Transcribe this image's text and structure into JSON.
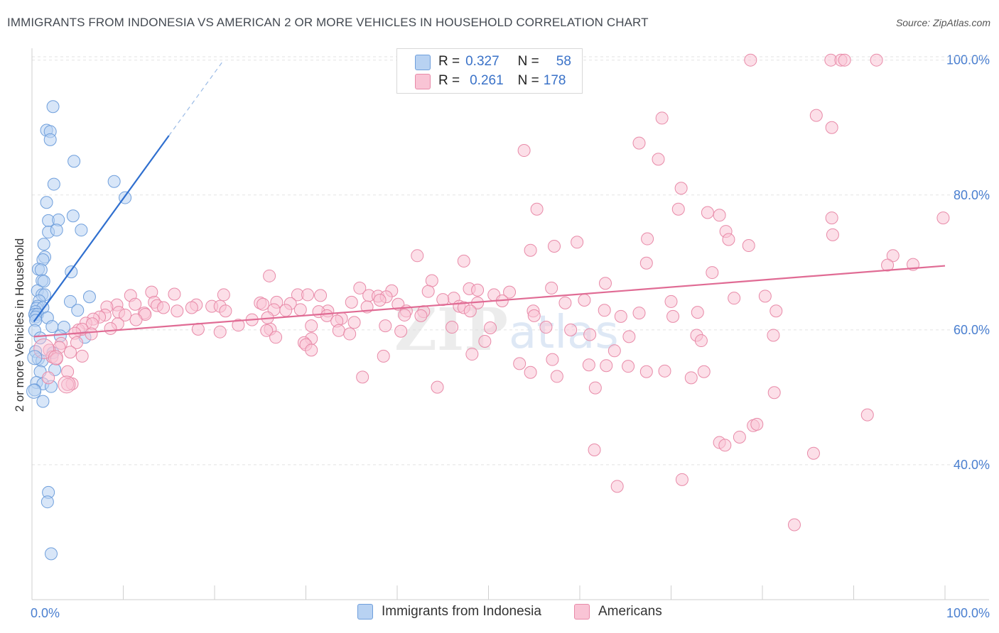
{
  "title": "IMMIGRANTS FROM INDONESIA VS AMERICAN 2 OR MORE VEHICLES IN HOUSEHOLD CORRELATION CHART",
  "source": "Source: ZipAtlas.com",
  "legend": {
    "rows": [
      {
        "r_label": "R =",
        "r_value": "0.327",
        "n_label": "N =",
        "n_value": "58",
        "color": "#b8d2f2",
        "border": "#6f9fdc"
      },
      {
        "r_label": "R =",
        "r_value": "0.261",
        "n_label": "N =",
        "n_value": "178",
        "color": "#f9c4d5",
        "border": "#e88aa8"
      }
    ]
  },
  "bottom_legend": [
    {
      "label": "Immigrants from Indonesia",
      "color": "#b8d2f2",
      "border": "#6f9fdc"
    },
    {
      "label": "Americans",
      "color": "#f9c4d5",
      "border": "#e88aa8"
    }
  ],
  "watermark": {
    "zip": "ZIP",
    "atlas": "atlas"
  },
  "chart_data": {
    "type": "scatter",
    "title": "IMMIGRANTS FROM INDONESIA VS AMERICAN 2 OR MORE VEHICLES IN HOUSEHOLD CORRELATION CHART",
    "xlabel": "",
    "ylabel": "2 or more Vehicles in Household",
    "xlim": [
      0,
      100
    ],
    "ylim": [
      20,
      102
    ],
    "x_tick_labels": [
      "0.0%",
      "100.0%"
    ],
    "y_ticks": [
      40,
      60,
      80,
      100
    ],
    "y_tick_labels": [
      "40.0%",
      "60.0%",
      "80.0%",
      "100.0%"
    ],
    "grid": true,
    "legend_position": "top-center",
    "series": [
      {
        "name": "Immigrants from Indonesia",
        "color": "#6f9fdc",
        "fill": "#b8d2f2",
        "trend_color": "#2f6fcf",
        "trend": {
          "x0": 0.2,
          "y0": 61.2,
          "x1": 15.0,
          "y1": 88.8,
          "dash_x1": 21.0,
          "dash_y1": 100.0
        },
        "points": [
          [
            2.3,
            93.1
          ],
          [
            1.6,
            89.6
          ],
          [
            2.0,
            89.4
          ],
          [
            2.0,
            88.2
          ],
          [
            4.6,
            85.0
          ],
          [
            2.4,
            81.6
          ],
          [
            9.0,
            82.0
          ],
          [
            10.2,
            79.6
          ],
          [
            1.6,
            78.9
          ],
          [
            4.5,
            76.9
          ],
          [
            1.8,
            76.2
          ],
          [
            2.9,
            76.3
          ],
          [
            5.4,
            74.8
          ],
          [
            1.8,
            74.5
          ],
          [
            2.7,
            74.8
          ],
          [
            1.3,
            72.7
          ],
          [
            1.4,
            70.8
          ],
          [
            1.2,
            70.4
          ],
          [
            0.7,
            69.0
          ],
          [
            1.0,
            68.9
          ],
          [
            4.3,
            68.6
          ],
          [
            1.1,
            67.3
          ],
          [
            1.3,
            67.2
          ],
          [
            0.6,
            65.8
          ],
          [
            1.1,
            65.2
          ],
          [
            1.4,
            65.2
          ],
          [
            6.3,
            64.9
          ],
          [
            0.8,
            64.3
          ],
          [
            4.2,
            64.2
          ],
          [
            0.6,
            63.5
          ],
          [
            0.5,
            63.2
          ],
          [
            1.2,
            63.3
          ],
          [
            0.4,
            62.7
          ],
          [
            5.0,
            62.9
          ],
          [
            0.3,
            62.3
          ],
          [
            0.6,
            62.3
          ],
          [
            0.4,
            61.9
          ],
          [
            1.7,
            61.8
          ],
          [
            0.4,
            61.4
          ],
          [
            2.2,
            60.5
          ],
          [
            3.5,
            60.4
          ],
          [
            0.3,
            59.9
          ],
          [
            3.1,
            59.1
          ],
          [
            5.8,
            58.9
          ],
          [
            0.9,
            58.8
          ],
          [
            0.4,
            56.8
          ],
          [
            2.3,
            56.6
          ],
          [
            0.7,
            55.7
          ],
          [
            1.1,
            55.4
          ],
          [
            0.9,
            53.8
          ],
          [
            2.5,
            54.1
          ],
          [
            0.5,
            52.2
          ],
          [
            1.2,
            52.0
          ],
          [
            2.1,
            51.6
          ],
          [
            0.3,
            51.1
          ],
          [
            1.2,
            49.4
          ],
          [
            1.8,
            35.9
          ],
          [
            1.7,
            34.5
          ],
          [
            2.1,
            26.8
          ]
        ]
      },
      {
        "name": "Americans",
        "color": "#e88aa8",
        "fill": "#f9c4d5",
        "trend_color": "#e06b94",
        "trend": {
          "x0": 0.2,
          "y0": 59.0,
          "x1": 100.0,
          "y1": 69.5
        },
        "points": [
          [
            78.7,
            100.0
          ],
          [
            87.5,
            100.0
          ],
          [
            88.6,
            100.0
          ],
          [
            89.0,
            100.0
          ],
          [
            92.5,
            100.0
          ],
          [
            69.0,
            91.4
          ],
          [
            85.9,
            91.8
          ],
          [
            87.6,
            90.0
          ],
          [
            66.5,
            87.7
          ],
          [
            53.9,
            86.6
          ],
          [
            68.6,
            85.3
          ],
          [
            71.1,
            81.0
          ],
          [
            55.3,
            77.9
          ],
          [
            70.8,
            77.9
          ],
          [
            74.0,
            77.4
          ],
          [
            75.3,
            77.0
          ],
          [
            87.6,
            76.6
          ],
          [
            99.8,
            76.6
          ],
          [
            76.0,
            74.6
          ],
          [
            87.7,
            74.1
          ],
          [
            76.3,
            73.4
          ],
          [
            67.4,
            73.5
          ],
          [
            59.7,
            73.0
          ],
          [
            78.5,
            72.5
          ],
          [
            57.2,
            72.4
          ],
          [
            54.6,
            71.8
          ],
          [
            42.2,
            71.0
          ],
          [
            94.3,
            71.0
          ],
          [
            47.3,
            70.2
          ],
          [
            67.3,
            69.9
          ],
          [
            93.7,
            69.6
          ],
          [
            96.5,
            69.7
          ],
          [
            74.5,
            68.5
          ],
          [
            26.0,
            68.0
          ],
          [
            43.8,
            67.3
          ],
          [
            62.8,
            66.9
          ],
          [
            35.9,
            66.2
          ],
          [
            47.9,
            66.1
          ],
          [
            56.9,
            66.2
          ],
          [
            39.4,
            65.8
          ],
          [
            48.8,
            65.9
          ],
          [
            52.3,
            65.6
          ],
          [
            43.4,
            65.7
          ],
          [
            13.1,
            65.6
          ],
          [
            15.6,
            65.3
          ],
          [
            29.1,
            65.2
          ],
          [
            36.9,
            65.1
          ],
          [
            50.6,
            65.2
          ],
          [
            10.8,
            65.1
          ],
          [
            21.0,
            65.2
          ],
          [
            30.2,
            65.2
          ],
          [
            31.6,
            65.1
          ],
          [
            37.9,
            65.0
          ],
          [
            38.8,
            64.9
          ],
          [
            46.2,
            64.7
          ],
          [
            45.0,
            64.5
          ],
          [
            38.1,
            64.4
          ],
          [
            80.3,
            65.0
          ],
          [
            76.9,
            64.7
          ],
          [
            60.5,
            64.4
          ],
          [
            51.5,
            64.3
          ],
          [
            70.0,
            64.2
          ],
          [
            13.4,
            64.1
          ],
          [
            25.0,
            64.0
          ],
          [
            26.8,
            64.1
          ],
          [
            35.0,
            64.1
          ],
          [
            48.8,
            64.0
          ],
          [
            58.4,
            64.0
          ],
          [
            28.3,
            63.9
          ],
          [
            11.3,
            63.8
          ],
          [
            9.3,
            63.7
          ],
          [
            13.7,
            63.6
          ],
          [
            18.0,
            63.7
          ],
          [
            19.7,
            63.5
          ],
          [
            20.6,
            63.5
          ],
          [
            25.3,
            63.8
          ],
          [
            36.7,
            63.4
          ],
          [
            40.1,
            63.8
          ],
          [
            46.8,
            63.5
          ],
          [
            47.3,
            63.3
          ],
          [
            8.2,
            63.4
          ],
          [
            14.4,
            63.3
          ],
          [
            17.5,
            63.3
          ],
          [
            26.5,
            63.0
          ],
          [
            29.4,
            63.0
          ],
          [
            41.0,
            62.8
          ],
          [
            27.8,
            62.9
          ],
          [
            32.4,
            62.8
          ],
          [
            9.5,
            62.6
          ],
          [
            12.3,
            62.5
          ],
          [
            15.9,
            62.8
          ],
          [
            21.2,
            62.8
          ],
          [
            31.4,
            62.7
          ],
          [
            42.9,
            62.7
          ],
          [
            48.0,
            62.8
          ],
          [
            54.9,
            62.8
          ],
          [
            62.7,
            62.9
          ],
          [
            66.5,
            62.5
          ],
          [
            72.9,
            62.6
          ],
          [
            81.5,
            62.8
          ],
          [
            12.4,
            62.3
          ],
          [
            10.2,
            62.2
          ],
          [
            8.0,
            62.2
          ],
          [
            7.4,
            61.9
          ],
          [
            32.3,
            62.1
          ],
          [
            40.8,
            62.2
          ],
          [
            42.6,
            62.1
          ],
          [
            55.0,
            62.1
          ],
          [
            64.5,
            62.0
          ],
          [
            70.2,
            62.0
          ],
          [
            25.8,
            61.8
          ],
          [
            33.9,
            61.7
          ],
          [
            6.7,
            61.6
          ],
          [
            11.4,
            61.5
          ],
          [
            24.1,
            61.5
          ],
          [
            33.4,
            61.3
          ],
          [
            35.3,
            61.1
          ],
          [
            5.9,
            61.0
          ],
          [
            6.6,
            60.9
          ],
          [
            9.4,
            60.9
          ],
          [
            22.6,
            60.7
          ],
          [
            30.6,
            60.6
          ],
          [
            38.7,
            60.6
          ],
          [
            46.0,
            60.4
          ],
          [
            50.2,
            60.3
          ],
          [
            8.6,
            60.2
          ],
          [
            5.1,
            60.0
          ],
          [
            5.5,
            60.1
          ],
          [
            26.1,
            60.1
          ],
          [
            18.2,
            60.1
          ],
          [
            56.3,
            60.4
          ],
          [
            59.0,
            60.0
          ],
          [
            25.7,
            59.9
          ],
          [
            33.6,
            59.9
          ],
          [
            40.4,
            59.8
          ],
          [
            20.6,
            59.7
          ],
          [
            34.8,
            59.4
          ],
          [
            4.7,
            59.5
          ],
          [
            6.5,
            59.4
          ],
          [
            61.1,
            59.3
          ],
          [
            72.8,
            59.2
          ],
          [
            81.2,
            59.2
          ],
          [
            26.7,
            58.9
          ],
          [
            30.6,
            58.7
          ],
          [
            65.4,
            59.0
          ],
          [
            73.3,
            58.4
          ],
          [
            4.9,
            58.1
          ],
          [
            3.2,
            58.0
          ],
          [
            29.8,
            58.1
          ],
          [
            30.0,
            57.8
          ],
          [
            49.6,
            58.3
          ],
          [
            3.0,
            57.4
          ],
          [
            1.9,
            57.0
          ],
          [
            4.2,
            56.7
          ],
          [
            30.6,
            57.0
          ],
          [
            63.8,
            56.9
          ],
          [
            48.2,
            56.4
          ],
          [
            2.2,
            56.0
          ],
          [
            2.7,
            55.7
          ],
          [
            5.5,
            56.1
          ],
          [
            38.5,
            56.1
          ],
          [
            57.0,
            55.6
          ],
          [
            53.4,
            55.0
          ],
          [
            61.0,
            54.8
          ],
          [
            54.6,
            53.7
          ],
          [
            62.9,
            54.7
          ],
          [
            65.3,
            54.6
          ],
          [
            67.3,
            53.8
          ],
          [
            69.3,
            53.9
          ],
          [
            73.6,
            53.8
          ],
          [
            3.9,
            53.8
          ],
          [
            57.5,
            53.1
          ],
          [
            36.2,
            53.0
          ],
          [
            1.8,
            52.9
          ],
          [
            4.4,
            52.0
          ],
          [
            72.2,
            52.9
          ],
          [
            44.4,
            51.5
          ],
          [
            61.7,
            51.4
          ],
          [
            3.9,
            51.9
          ],
          [
            81.3,
            50.7
          ],
          [
            79.0,
            45.8
          ],
          [
            77.5,
            44.1
          ],
          [
            75.3,
            43.3
          ],
          [
            85.6,
            41.7
          ],
          [
            91.5,
            47.4
          ],
          [
            61.6,
            42.2
          ],
          [
            75.9,
            42.9
          ],
          [
            79.4,
            46.0
          ],
          [
            64.1,
            36.8
          ],
          [
            71.2,
            37.8
          ],
          [
            83.5,
            31.1
          ]
        ]
      }
    ]
  }
}
